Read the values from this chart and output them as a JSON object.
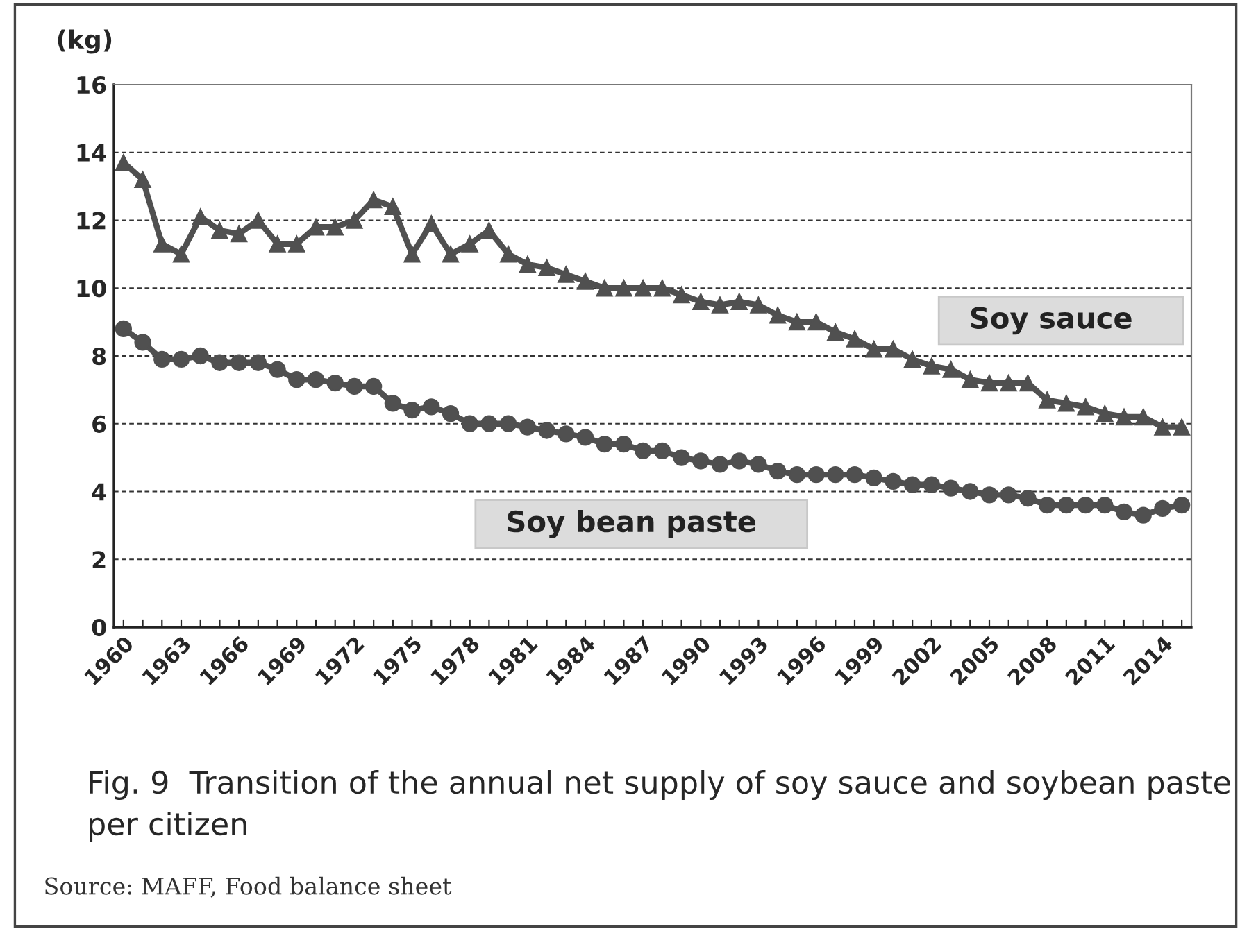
{
  "chart_data": {
    "type": "line",
    "title": "Fig. 9  Transition of the annual net supply of soy sauce and soybean paste per citizen",
    "ylabel": "(kg)",
    "categories": [
      "1960",
      null,
      null,
      "1963",
      null,
      null,
      "1966",
      null,
      null,
      "1969",
      null,
      null,
      "1972",
      null,
      null,
      "1975",
      null,
      null,
      "1978",
      null,
      null,
      "1981",
      null,
      null,
      "1984",
      null,
      null,
      "1987",
      null,
      null,
      "1990",
      null,
      null,
      "1993",
      null,
      null,
      "1996",
      null,
      null,
      "1999",
      null,
      null,
      "2002",
      null,
      null,
      "2005",
      null,
      null,
      "2008",
      null,
      null,
      "2011",
      null,
      null,
      "2014",
      null
    ],
    "series": [
      {
        "name": "Soy sauce",
        "color": "#505050",
        "marker": "triangle",
        "values": [
          13.7,
          13.2,
          11.3,
          11.0,
          12.1,
          11.7,
          11.6,
          12.0,
          11.3,
          11.3,
          11.8,
          11.8,
          12.0,
          12.6,
          12.4,
          11.0,
          11.9,
          11.0,
          11.3,
          11.7,
          11.0,
          10.7,
          10.6,
          10.4,
          10.2,
          10.0,
          10.0,
          10.0,
          10.0,
          9.8,
          9.6,
          9.5,
          9.6,
          9.5,
          9.2,
          9.0,
          9.0,
          8.7,
          8.5,
          8.2,
          8.2,
          7.9,
          7.7,
          7.6,
          7.3,
          7.2,
          7.2,
          7.2,
          6.7,
          6.6,
          6.5,
          6.3,
          6.2,
          6.2,
          5.9,
          5.9
        ]
      },
      {
        "name": "Soy bean paste",
        "color": "#505050",
        "marker": "circle",
        "values": [
          8.8,
          8.4,
          7.9,
          7.9,
          8.0,
          7.8,
          7.8,
          7.8,
          7.6,
          7.3,
          7.3,
          7.2,
          7.1,
          7.1,
          6.6,
          6.4,
          6.5,
          6.3,
          6.0,
          6.0,
          6.0,
          5.9,
          5.8,
          5.7,
          5.6,
          5.4,
          5.4,
          5.2,
          5.2,
          5.0,
          4.9,
          4.8,
          4.9,
          4.8,
          4.6,
          4.5,
          4.5,
          4.5,
          4.5,
          4.4,
          4.3,
          4.2,
          4.2,
          4.1,
          4.0,
          3.9,
          3.9,
          3.8,
          3.6,
          3.6,
          3.6,
          3.6,
          3.4,
          3.3,
          3.5,
          3.6
        ]
      }
    ],
    "ylim": [
      0,
      16
    ],
    "yticks": [
      0,
      2,
      4,
      6,
      8,
      10,
      12,
      14,
      16
    ],
    "grid": "y",
    "legend": false,
    "line_style": "solid",
    "annotations": [
      "Source: MAFF, Food balance sheet"
    ]
  }
}
